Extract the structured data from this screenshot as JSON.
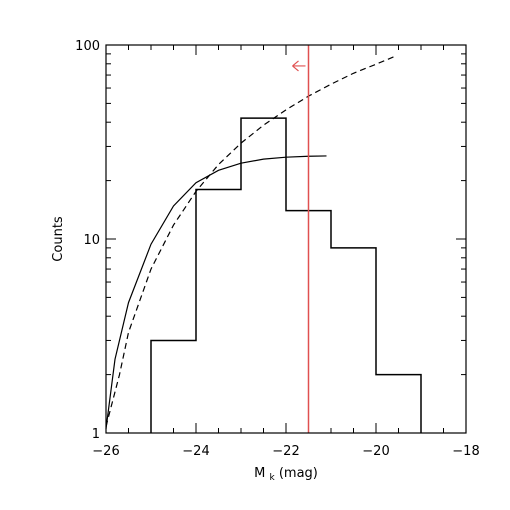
{
  "chart_data": {
    "type": "histogram",
    "title": "",
    "xlabel": {
      "main": "M",
      "subscript": "k",
      "unit": "(mag)"
    },
    "ylabel": "Counts",
    "xlim": [
      -26,
      -18
    ],
    "ylim": [
      1,
      100
    ],
    "y_scale": "log",
    "grid": false,
    "x_ticks": [
      -26,
      -24,
      -22,
      -20,
      -18
    ],
    "x_tick_labels": [
      "−26",
      "−24",
      "−22",
      "−20",
      "−18"
    ],
    "y_ticks": [
      1,
      10,
      100
    ],
    "y_tick_labels": [
      "1",
      "10",
      "100"
    ],
    "histogram": {
      "bin_edges": [
        -25,
        -24,
        -23,
        -22,
        -21,
        -20,
        -19
      ],
      "counts": [
        3,
        18,
        42,
        14,
        9,
        2
      ]
    },
    "curves": [
      {
        "style": "solid",
        "color": "#000000",
        "points": [
          [
            -26,
            1.05
          ],
          [
            -25.8,
            2.4
          ],
          [
            -25.5,
            4.7
          ],
          [
            -25,
            9.4
          ],
          [
            -24.5,
            14.8
          ],
          [
            -24,
            19.5
          ],
          [
            -23.5,
            22.6
          ],
          [
            -23,
            24.6
          ],
          [
            -22.5,
            25.8
          ],
          [
            -22,
            26.4
          ],
          [
            -21.5,
            26.7
          ],
          [
            -21.1,
            26.8
          ]
        ]
      },
      {
        "style": "dashed",
        "color": "#000000",
        "points": [
          [
            -26,
            1.08
          ],
          [
            -25.7,
            2.0
          ],
          [
            -25.5,
            3.3
          ],
          [
            -25,
            7.0
          ],
          [
            -24.5,
            11.8
          ],
          [
            -24,
            17.6
          ],
          [
            -23.5,
            24.2
          ],
          [
            -23,
            31.2
          ],
          [
            -22.5,
            38.6
          ],
          [
            -22,
            46.3
          ],
          [
            -21.5,
            54.5
          ],
          [
            -21,
            62.8
          ],
          [
            -20.5,
            71.5
          ],
          [
            -20,
            79.6
          ],
          [
            -19.6,
            87
          ]
        ]
      }
    ],
    "cutoff": {
      "x": -21.5,
      "color": "#e05050",
      "arrow_direction": "left",
      "arrow_y": 78
    }
  }
}
